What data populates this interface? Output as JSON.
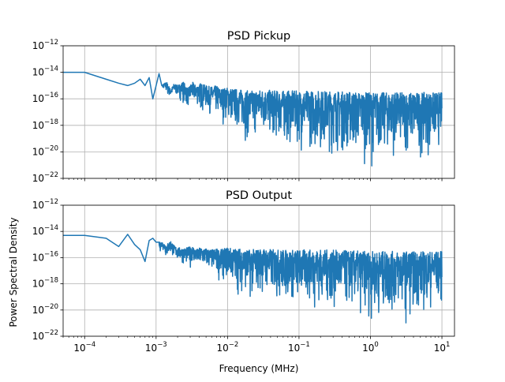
{
  "figure": {
    "ylabel": "Power Spectral Density",
    "xlabel": "Frequency (MHz)"
  },
  "chart_data": [
    {
      "type": "line",
      "title": "PSD Pickup",
      "xlabel": "",
      "ylabel": "",
      "xscale": "log",
      "yscale": "log",
      "xlim": [
        5e-05,
        15
      ],
      "ylim": [
        1e-22,
        1e-12
      ],
      "grid": true,
      "color": "#1f77b4",
      "x_ticks": [
        -4,
        -3,
        -2,
        -1,
        0,
        1
      ],
      "y_ticks": [
        -22,
        -20,
        -18,
        -16,
        -14,
        -12
      ],
      "x_tick_labels_shown": false,
      "series": [
        {
          "x": [
            5e-05,
            0.0001,
            0.0002,
            0.0003,
            0.0004,
            0.0005,
            0.0006,
            0.0007,
            0.0008,
            0.0009,
            0.001,
            0.0011,
            0.0012,
            0.0014,
            0.0016,
            0.0018,
            0.002,
            0.0024,
            0.0028,
            0.0032,
            0.0036,
            0.0042,
            0.005,
            0.006,
            0.007,
            0.008,
            0.01,
            0.012,
            0.015,
            0.02,
            0.03,
            0.05,
            0.1,
            0.2,
            0.5,
            1,
            2,
            5,
            10
          ],
          "envelope_upper": [
            1e-14,
            1e-14,
            3e-15,
            1.5e-15,
            1e-15,
            1.5e-15,
            3e-15,
            1e-15,
            4e-15,
            1e-16,
            1e-15,
            8e-15,
            1e-15,
            2e-15,
            5e-16,
            1.5e-15,
            1e-15,
            2e-15,
            6e-16,
            2e-15,
            1e-15,
            1.5e-15,
            1e-15,
            8e-16,
            1e-15,
            6e-16,
            7e-16,
            6e-16,
            5e-16,
            4e-16,
            5e-16,
            4e-16,
            4e-16,
            4e-16,
            3.5e-16,
            3e-16,
            3e-16,
            3e-16,
            3e-16
          ],
          "envelope_lower": [
            1e-14,
            1e-14,
            3e-15,
            1.5e-15,
            1e-15,
            1.5e-15,
            3e-15,
            1e-15,
            4e-15,
            1e-16,
            1e-15,
            8e-15,
            1e-15,
            1e-16,
            1e-16,
            1e-16,
            1e-16,
            3e-17,
            1e-17,
            1e-17,
            2e-17,
            5e-18,
            5e-18,
            3e-18,
            1e-18,
            5e-19,
            1e-18,
            1e-19,
            1e-19,
            1e-20,
            5e-20,
            1e-20,
            5e-21,
            3e-21,
            1e-21,
            5e-22,
            1e-21,
            1e-21,
            5e-21
          ]
        }
      ]
    },
    {
      "type": "line",
      "title": "PSD Output",
      "xlabel": "Frequency (MHz)",
      "ylabel": "Power Spectral Density",
      "xscale": "log",
      "yscale": "log",
      "xlim": [
        5e-05,
        15
      ],
      "ylim": [
        1e-22,
        1e-12
      ],
      "grid": true,
      "color": "#1f77b4",
      "x_ticks": [
        -4,
        -3,
        -2,
        -1,
        0,
        1
      ],
      "y_ticks": [
        -22,
        -20,
        -18,
        -16,
        -14,
        -12
      ],
      "series": [
        {
          "x": [
            5e-05,
            0.0001,
            0.0002,
            0.0003,
            0.0004,
            0.0005,
            0.0006,
            0.0007,
            0.0008,
            0.0009,
            0.001,
            0.0011,
            0.0012,
            0.0014,
            0.0016,
            0.0018,
            0.002,
            0.0024,
            0.0028,
            0.0032,
            0.0036,
            0.0042,
            0.005,
            0.006,
            0.007,
            0.008,
            0.01,
            0.012,
            0.015,
            0.02,
            0.03,
            0.05,
            0.1,
            0.2,
            0.5,
            1,
            2,
            5,
            10
          ],
          "envelope_upper": [
            5e-15,
            5e-15,
            3e-15,
            7e-16,
            6e-15,
            1e-15,
            4e-16,
            5e-17,
            2e-15,
            3e-15,
            1.5e-15,
            1.5e-15,
            1.5e-15,
            1e-15,
            2e-15,
            8e-16,
            6e-16,
            5e-16,
            6e-16,
            8e-16,
            4e-16,
            6e-16,
            5e-16,
            4e-16,
            5e-16,
            4e-16,
            6e-16,
            5e-16,
            5e-16,
            4e-16,
            5e-16,
            4e-16,
            4e-16,
            4e-16,
            3.5e-16,
            3e-16,
            3e-16,
            3e-16,
            3e-16
          ],
          "envelope_lower": [
            5e-15,
            5e-15,
            3e-15,
            7e-16,
            6e-15,
            1e-15,
            4e-16,
            5e-17,
            2e-15,
            3e-15,
            1.5e-15,
            1e-16,
            5e-16,
            5e-17,
            1e-16,
            5e-17,
            3e-17,
            2e-17,
            1e-17,
            2e-17,
            1e-17,
            5e-18,
            5e-18,
            3e-18,
            2e-18,
            5e-19,
            1e-18,
            1e-19,
            1e-19,
            1e-20,
            5e-20,
            1e-20,
            5e-21,
            3e-21,
            1e-21,
            5e-22,
            5e-22,
            1e-21,
            5e-21
          ]
        }
      ]
    }
  ]
}
